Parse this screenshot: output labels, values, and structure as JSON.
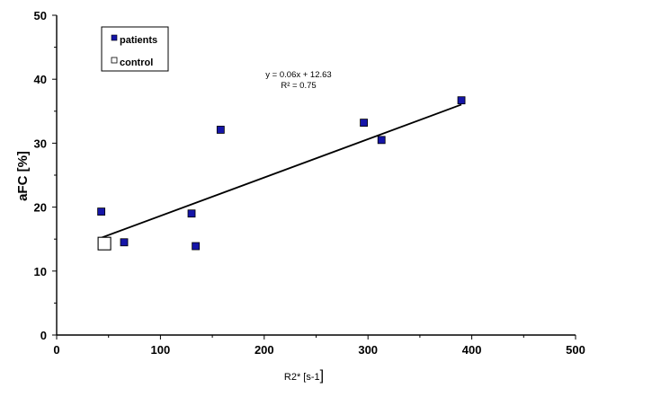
{
  "chart_data": {
    "type": "scatter",
    "xlabel": "R2* [s-1",
    "xlabel_suffix": "]",
    "ylabel": "aFC [%]",
    "xlim": [
      0,
      500
    ],
    "ylim": [
      0,
      50
    ],
    "xticks": [
      0,
      100,
      200,
      300,
      400,
      500
    ],
    "yticks": [
      0,
      10,
      20,
      30,
      40,
      50
    ],
    "grid": false,
    "legend_position": "top-left",
    "series": [
      {
        "name": "patients",
        "marker": "filled-square",
        "color": "#1515a8",
        "points": [
          {
            "x": 43,
            "y": 19.3
          },
          {
            "x": 65,
            "y": 14.5
          },
          {
            "x": 130,
            "y": 19.0
          },
          {
            "x": 134,
            "y": 13.9
          },
          {
            "x": 158,
            "y": 32.1
          },
          {
            "x": 296,
            "y": 33.2
          },
          {
            "x": 313,
            "y": 30.5
          },
          {
            "x": 390,
            "y": 36.7
          }
        ]
      },
      {
        "name": "control",
        "marker": "open-square",
        "color": "#000000",
        "points": [
          {
            "x": 46,
            "y": 14.3
          }
        ]
      }
    ],
    "trendline": {
      "slope": 0.06,
      "intercept": 12.63,
      "x_range": [
        43,
        390
      ],
      "equation": "y = 0.06x + 12.63",
      "r_squared": "R² = 0.75"
    }
  }
}
